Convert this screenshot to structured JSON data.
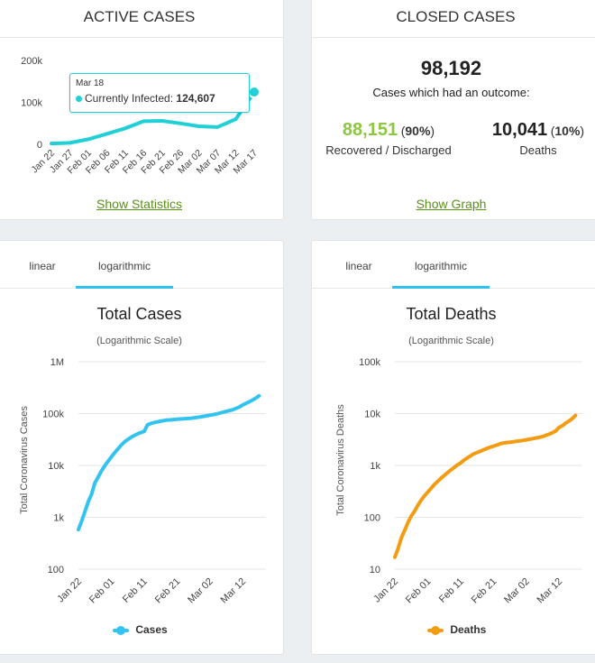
{
  "active_cases": {
    "header": "ACTIVE CASES",
    "link": "Show Statistics",
    "tooltip": {
      "date": "Mar 18",
      "label": "Currently Infected:",
      "value": "124,607"
    },
    "chart_data": {
      "type": "area",
      "series_color": "#20d0d6",
      "x": [
        "Jan 22",
        "Jan 27",
        "Feb 01",
        "Feb 06",
        "Feb 11",
        "Feb 16",
        "Feb 21",
        "Feb 26",
        "Mar 02",
        "Mar 07",
        "Mar 12",
        "Mar 17"
      ],
      "values": [
        2000,
        3500,
        12000,
        25000,
        38000,
        55000,
        56000,
        50000,
        43000,
        41000,
        60000,
        124607
      ],
      "ylim": [
        0,
        200000
      ],
      "yticks": [
        "0",
        "100k",
        "200k"
      ],
      "ytick_values": [
        0,
        100000,
        200000
      ],
      "title": "",
      "xlabel": "",
      "ylabel": ""
    }
  },
  "closed_cases": {
    "header": "CLOSED CASES",
    "total": "98,192",
    "caption": "Cases which had an outcome:",
    "recovered": {
      "value": "88,151",
      "pct": "(90%)",
      "pct_open": "(",
      "pct_num": "90%",
      "pct_close": ")",
      "label": "Recovered / Discharged",
      "color": "#8dc63f"
    },
    "deaths": {
      "value": "10,041",
      "pct_open": "(",
      "pct_num": "10%",
      "pct_close": ")",
      "label": "Deaths"
    },
    "link": "Show Graph"
  },
  "total_cases": {
    "tabs": [
      "linear",
      "logarithmic"
    ],
    "active_tab": "logarithmic",
    "title": "Total Cases",
    "subtitle": "(Logarithmic Scale)",
    "ylabel": "Total Coronavirus Cases",
    "legend": "Cases",
    "chart_data": {
      "type": "line",
      "scale": "log",
      "color": "#33c3f0",
      "yticks": [
        "100",
        "1k",
        "10k",
        "100k",
        "1M"
      ],
      "ytick_values": [
        100,
        1000,
        10000,
        100000,
        1000000
      ],
      "xticks": [
        "Jan 22",
        "Feb 01",
        "Feb 11",
        "Feb 21",
        "Mar 02",
        "Mar 12"
      ],
      "x_day_index": [
        0,
        10,
        20,
        30,
        40,
        50
      ],
      "points": [
        [
          0,
          580
        ],
        [
          1,
          850
        ],
        [
          2,
          1300
        ],
        [
          3,
          2000
        ],
        [
          4,
          2800
        ],
        [
          5,
          4600
        ],
        [
          6,
          6000
        ],
        [
          7,
          7800
        ],
        [
          8,
          9800
        ],
        [
          9,
          12000
        ],
        [
          10,
          14500
        ],
        [
          11,
          17500
        ],
        [
          12,
          20700
        ],
        [
          13,
          24600
        ],
        [
          14,
          28300
        ],
        [
          15,
          31500
        ],
        [
          16,
          34900
        ],
        [
          17,
          37600
        ],
        [
          18,
          40600
        ],
        [
          19,
          43100
        ],
        [
          20,
          45200
        ],
        [
          21,
          60300
        ],
        [
          22,
          64500
        ],
        [
          23,
          67100
        ],
        [
          24,
          69200
        ],
        [
          25,
          71300
        ],
        [
          26,
          73300
        ],
        [
          27,
          75200
        ],
        [
          28,
          75700
        ],
        [
          29,
          76700
        ],
        [
          30,
          77700
        ],
        [
          31,
          78600
        ],
        [
          32,
          79400
        ],
        [
          33,
          80100
        ],
        [
          34,
          81000
        ],
        [
          35,
          82400
        ],
        [
          36,
          84100
        ],
        [
          37,
          86000
        ],
        [
          38,
          88400
        ],
        [
          39,
          90400
        ],
        [
          40,
          92900
        ],
        [
          41,
          95200
        ],
        [
          42,
          98200
        ],
        [
          43,
          102000
        ],
        [
          44,
          106000
        ],
        [
          45,
          110000
        ],
        [
          46,
          114000
        ],
        [
          47,
          119000
        ],
        [
          48,
          126000
        ],
        [
          49,
          134000
        ],
        [
          50,
          146000
        ],
        [
          51,
          157000
        ],
        [
          52,
          169000
        ],
        [
          53,
          182000
        ],
        [
          54,
          198000
        ],
        [
          55,
          220000
        ]
      ],
      "ylim": [
        100,
        1000000
      ]
    }
  },
  "total_deaths": {
    "tabs": [
      "linear",
      "logarithmic"
    ],
    "active_tab": "logarithmic",
    "title": "Total Deaths",
    "subtitle": "(Logarithmic Scale)",
    "ylabel": "Total Coronavirus Deaths",
    "legend": "Deaths",
    "chart_data": {
      "type": "line",
      "scale": "log",
      "color": "#f39c12",
      "yticks": [
        "10",
        "100",
        "1k",
        "10k",
        "100k"
      ],
      "ytick_values": [
        10,
        100,
        1000,
        10000,
        100000
      ],
      "xticks": [
        "Jan 22",
        "Feb 01",
        "Feb 11",
        "Feb 21",
        "Mar 02",
        "Mar 12"
      ],
      "x_day_index": [
        0,
        10,
        20,
        30,
        40,
        50
      ],
      "points": [
        [
          0,
          17
        ],
        [
          1,
          25
        ],
        [
          2,
          41
        ],
        [
          3,
          56
        ],
        [
          4,
          80
        ],
        [
          5,
          106
        ],
        [
          6,
          132
        ],
        [
          7,
          170
        ],
        [
          8,
          213
        ],
        [
          9,
          259
        ],
        [
          10,
          304
        ],
        [
          11,
          362
        ],
        [
          12,
          426
        ],
        [
          13,
          492
        ],
        [
          14,
          565
        ],
        [
          15,
          638
        ],
        [
          16,
          724
        ],
        [
          17,
          813
        ],
        [
          18,
          910
        ],
        [
          19,
          1018
        ],
        [
          20,
          1115
        ],
        [
          21,
          1261
        ],
        [
          22,
          1383
        ],
        [
          23,
          1526
        ],
        [
          24,
          1669
        ],
        [
          25,
          1775
        ],
        [
          26,
          1873
        ],
        [
          27,
          2009
        ],
        [
          28,
          2126
        ],
        [
          29,
          2247
        ],
        [
          30,
          2360
        ],
        [
          31,
          2460
        ],
        [
          32,
          2618
        ],
        [
          33,
          2699
        ],
        [
          34,
          2763
        ],
        [
          35,
          2800
        ],
        [
          36,
          2858
        ],
        [
          37,
          2923
        ],
        [
          38,
          2977
        ],
        [
          39,
          3050
        ],
        [
          40,
          3117
        ],
        [
          41,
          3202
        ],
        [
          42,
          3285
        ],
        [
          43,
          3387
        ],
        [
          44,
          3494
        ],
        [
          45,
          3605
        ],
        [
          46,
          3813
        ],
        [
          47,
          4011
        ],
        [
          48,
          4292
        ],
        [
          49,
          4641
        ],
        [
          50,
          5405
        ],
        [
          51,
          5833
        ],
        [
          52,
          6536
        ],
        [
          53,
          7160
        ],
        [
          54,
          7987
        ],
        [
          55,
          9191
        ]
      ],
      "ylim": [
        10,
        100000
      ]
    }
  }
}
